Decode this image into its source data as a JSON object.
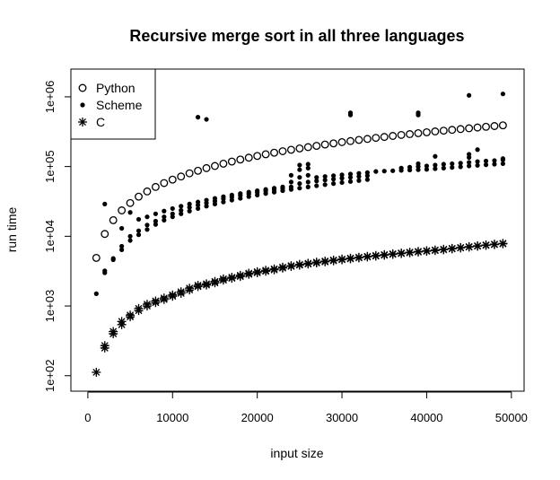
{
  "chart_data": {
    "type": "scatter",
    "title": "Recursive merge sort in all three languages",
    "xlabel": "input size",
    "ylabel": "run time",
    "xlim": [
      -2000,
      51500
    ],
    "ylim": [
      60,
      2500000
    ],
    "y_scale": "log",
    "x_ticks": [
      0,
      10000,
      20000,
      30000,
      40000,
      50000
    ],
    "x_tick_labels": [
      "0",
      "10000",
      "20000",
      "30000",
      "40000",
      "50000"
    ],
    "y_ticks": [
      100,
      1000,
      10000,
      100000,
      1000000
    ],
    "y_tick_labels": [
      "1e+02",
      "1e+03",
      "1e+04",
      "1e+05",
      "1e+06"
    ],
    "legend_position": "top-left",
    "grid": false,
    "series": [
      {
        "name": "Python",
        "marker": "open-circle",
        "points": [
          [
            1000,
            4900
          ],
          [
            2000,
            10800
          ],
          [
            3000,
            17000
          ],
          [
            4000,
            23500
          ],
          [
            5000,
            30000
          ],
          [
            6000,
            37000
          ],
          [
            7000,
            44000
          ],
          [
            8000,
            51000
          ],
          [
            9000,
            58000
          ],
          [
            10000,
            65000
          ],
          [
            11000,
            72000
          ],
          [
            12000,
            80000
          ],
          [
            13000,
            87000
          ],
          [
            14000,
            95000
          ],
          [
            15000,
            102000
          ],
          [
            16000,
            110000
          ],
          [
            17000,
            118000
          ],
          [
            18000,
            126000
          ],
          [
            19000,
            134000
          ],
          [
            20000,
            142000
          ],
          [
            21000,
            150000
          ],
          [
            22000,
            158000
          ],
          [
            23000,
            166000
          ],
          [
            24000,
            174000
          ],
          [
            25000,
            182000
          ],
          [
            26000,
            190000
          ],
          [
            27000,
            198000
          ],
          [
            28000,
            207000
          ],
          [
            29000,
            215000
          ],
          [
            30000,
            224000
          ],
          [
            31000,
            232000
          ],
          [
            32000,
            241000
          ],
          [
            33000,
            249000
          ],
          [
            34000,
            258000
          ],
          [
            35000,
            266000
          ],
          [
            36000,
            275000
          ],
          [
            37000,
            284000
          ],
          [
            38000,
            292000
          ],
          [
            39000,
            301000
          ],
          [
            40000,
            310000
          ],
          [
            41000,
            319000
          ],
          [
            42000,
            327000
          ],
          [
            43000,
            336000
          ],
          [
            44000,
            345000
          ],
          [
            45000,
            354000
          ],
          [
            46000,
            363000
          ],
          [
            47000,
            372000
          ],
          [
            48000,
            381000
          ],
          [
            49000,
            390000
          ]
        ]
      },
      {
        "name": "Scheme",
        "marker": "filled-dot",
        "points": [
          [
            1000,
            1500
          ],
          [
            2000,
            3000
          ],
          [
            2000,
            3200
          ],
          [
            2000,
            29000
          ],
          [
            3000,
            4600
          ],
          [
            3000,
            4800
          ],
          [
            4000,
            6400
          ],
          [
            4000,
            7200
          ],
          [
            4000,
            13000
          ],
          [
            5000,
            8700
          ],
          [
            5000,
            10000
          ],
          [
            5000,
            22000
          ],
          [
            6000,
            10500
          ],
          [
            6000,
            12000
          ],
          [
            6000,
            17500
          ],
          [
            7000,
            12500
          ],
          [
            7000,
            14500
          ],
          [
            7000,
            19000
          ],
          [
            8000,
            14800
          ],
          [
            8000,
            16500
          ],
          [
            8000,
            21000
          ],
          [
            9000,
            17000
          ],
          [
            9000,
            19000
          ],
          [
            9000,
            23000
          ],
          [
            10000,
            19000
          ],
          [
            10000,
            21000
          ],
          [
            10000,
            25000
          ],
          [
            11000,
            21000
          ],
          [
            11000,
            23500
          ],
          [
            11000,
            27000
          ],
          [
            12000,
            23000
          ],
          [
            12000,
            26000
          ],
          [
            12000,
            29000
          ],
          [
            13000,
            25000
          ],
          [
            13000,
            28000
          ],
          [
            13000,
            31000
          ],
          [
            13000,
            510000
          ],
          [
            14000,
            27000
          ],
          [
            14000,
            30000
          ],
          [
            14000,
            33000
          ],
          [
            14000,
            475000
          ],
          [
            15000,
            29000
          ],
          [
            15000,
            32000
          ],
          [
            15000,
            35000
          ],
          [
            16000,
            31000
          ],
          [
            16000,
            34500
          ],
          [
            16000,
            37000
          ],
          [
            17000,
            33000
          ],
          [
            17000,
            36500
          ],
          [
            17000,
            39000
          ],
          [
            18000,
            35000
          ],
          [
            18000,
            38500
          ],
          [
            18000,
            41000
          ],
          [
            19000,
            37000
          ],
          [
            19000,
            40500
          ],
          [
            19000,
            43000
          ],
          [
            20000,
            39000
          ],
          [
            20000,
            42500
          ],
          [
            20000,
            45000
          ],
          [
            21000,
            41000
          ],
          [
            21000,
            44500
          ],
          [
            21000,
            47000
          ],
          [
            22000,
            43000
          ],
          [
            22000,
            46500
          ],
          [
            22000,
            49000
          ],
          [
            23000,
            45000
          ],
          [
            23000,
            48500
          ],
          [
            23000,
            51000
          ],
          [
            24000,
            47000
          ],
          [
            24000,
            51000
          ],
          [
            24000,
            60000
          ],
          [
            24000,
            75000
          ],
          [
            25000,
            49000
          ],
          [
            25000,
            57000
          ],
          [
            25000,
            70000
          ],
          [
            25000,
            90000
          ],
          [
            25000,
            105000
          ],
          [
            26000,
            51000
          ],
          [
            26000,
            60000
          ],
          [
            26000,
            75000
          ],
          [
            26000,
            95000
          ],
          [
            26000,
            108000
          ],
          [
            27000,
            53000
          ],
          [
            27000,
            62000
          ],
          [
            27000,
            70000
          ],
          [
            28000,
            55000
          ],
          [
            28000,
            64000
          ],
          [
            28000,
            72000
          ],
          [
            29000,
            57000
          ],
          [
            29000,
            66000
          ],
          [
            29000,
            74000
          ],
          [
            30000,
            59000
          ],
          [
            30000,
            68000
          ],
          [
            30000,
            76000
          ],
          [
            31000,
            61000
          ],
          [
            31000,
            70000
          ],
          [
            31000,
            78000
          ],
          [
            31000,
            550000
          ],
          [
            31000,
            590000
          ],
          [
            32000,
            63000
          ],
          [
            32000,
            72000
          ],
          [
            32000,
            80000
          ],
          [
            33000,
            65000
          ],
          [
            33000,
            74000
          ],
          [
            33000,
            82000
          ],
          [
            34000,
            85000
          ],
          [
            35000,
            86000
          ],
          [
            36000,
            87000
          ],
          [
            37000,
            88000
          ],
          [
            37000,
            95000
          ],
          [
            38000,
            89000
          ],
          [
            38000,
            98000
          ],
          [
            39000,
            90000
          ],
          [
            39000,
            100000
          ],
          [
            39000,
            110000
          ],
          [
            39000,
            550000
          ],
          [
            39000,
            590000
          ],
          [
            40000,
            91000
          ],
          [
            40000,
            102000
          ],
          [
            41000,
            93000
          ],
          [
            41000,
            105000
          ],
          [
            41000,
            140000
          ],
          [
            42000,
            95000
          ],
          [
            42000,
            108000
          ],
          [
            43000,
            97000
          ],
          [
            43000,
            110000
          ],
          [
            44000,
            99000
          ],
          [
            44000,
            112000
          ],
          [
            45000,
            102000
          ],
          [
            45000,
            115000
          ],
          [
            45000,
            135000
          ],
          [
            45000,
            150000
          ],
          [
            45000,
            1050000
          ],
          [
            46000,
            104000
          ],
          [
            46000,
            118000
          ],
          [
            46000,
            175000
          ],
          [
            47000,
            106000
          ],
          [
            47000,
            120000
          ],
          [
            48000,
            108000
          ],
          [
            48000,
            122000
          ],
          [
            49000,
            110000
          ],
          [
            49000,
            125000
          ],
          [
            49000,
            130000
          ],
          [
            49000,
            1100000
          ]
        ]
      },
      {
        "name": "C",
        "marker": "asterisk",
        "points": [
          [
            1000,
            112
          ],
          [
            2000,
            250
          ],
          [
            2000,
            270
          ],
          [
            3000,
            400
          ],
          [
            3000,
            430
          ],
          [
            4000,
            540
          ],
          [
            4000,
            600
          ],
          [
            5000,
            700
          ],
          [
            5000,
            740
          ],
          [
            6000,
            860
          ],
          [
            6000,
            920
          ],
          [
            7000,
            1000
          ],
          [
            7000,
            1060
          ],
          [
            8000,
            1120
          ],
          [
            8000,
            1180
          ],
          [
            9000,
            1240
          ],
          [
            9000,
            1300
          ],
          [
            10000,
            1380
          ],
          [
            10000,
            1440
          ],
          [
            11000,
            1520
          ],
          [
            11000,
            1600
          ],
          [
            12000,
            1700
          ],
          [
            12000,
            1800
          ],
          [
            13000,
            1900
          ],
          [
            13000,
            1980
          ],
          [
            14000,
            2000
          ],
          [
            14000,
            2080
          ],
          [
            15000,
            2150
          ],
          [
            15000,
            2250
          ],
          [
            16000,
            2350
          ],
          [
            16000,
            2450
          ],
          [
            17000,
            2500
          ],
          [
            17000,
            2580
          ],
          [
            18000,
            2650
          ],
          [
            18000,
            2750
          ],
          [
            19000,
            2850
          ],
          [
            19000,
            2950
          ],
          [
            20000,
            3000
          ],
          [
            20000,
            3100
          ],
          [
            21000,
            3150
          ],
          [
            21000,
            3250
          ],
          [
            22000,
            3300
          ],
          [
            22000,
            3400
          ],
          [
            23000,
            3500
          ],
          [
            23000,
            3600
          ],
          [
            24000,
            3700
          ],
          [
            24000,
            3780
          ],
          [
            25000,
            3850
          ],
          [
            25000,
            3950
          ],
          [
            26000,
            4000
          ],
          [
            26000,
            4100
          ],
          [
            27000,
            4150
          ],
          [
            27000,
            4250
          ],
          [
            28000,
            4300
          ],
          [
            28000,
            4400
          ],
          [
            29000,
            4450
          ],
          [
            29000,
            4550
          ],
          [
            30000,
            4600
          ],
          [
            30000,
            4700
          ],
          [
            31000,
            4750
          ],
          [
            31000,
            4850
          ],
          [
            32000,
            4900
          ],
          [
            32000,
            5000
          ],
          [
            33000,
            5050
          ],
          [
            33000,
            5150
          ],
          [
            34000,
            5200
          ],
          [
            34000,
            5300
          ],
          [
            35000,
            5350
          ],
          [
            35000,
            5450
          ],
          [
            36000,
            5500
          ],
          [
            36000,
            5600
          ],
          [
            37000,
            5650
          ],
          [
            37000,
            5750
          ],
          [
            38000,
            5800
          ],
          [
            38000,
            5900
          ],
          [
            39000,
            5950
          ],
          [
            39000,
            6050
          ],
          [
            40000,
            6100
          ],
          [
            40000,
            6200
          ],
          [
            41000,
            6250
          ],
          [
            41000,
            6350
          ],
          [
            42000,
            6400
          ],
          [
            42000,
            6500
          ],
          [
            43000,
            6600
          ],
          [
            43000,
            6700
          ],
          [
            44000,
            6800
          ],
          [
            44000,
            6900
          ],
          [
            45000,
            7000
          ],
          [
            45000,
            7100
          ],
          [
            46000,
            7200
          ],
          [
            46000,
            7300
          ],
          [
            47000,
            7400
          ],
          [
            47000,
            7500
          ],
          [
            48000,
            7600
          ],
          [
            48000,
            7700
          ],
          [
            49000,
            7800
          ],
          [
            49000,
            7900
          ]
        ]
      }
    ]
  }
}
